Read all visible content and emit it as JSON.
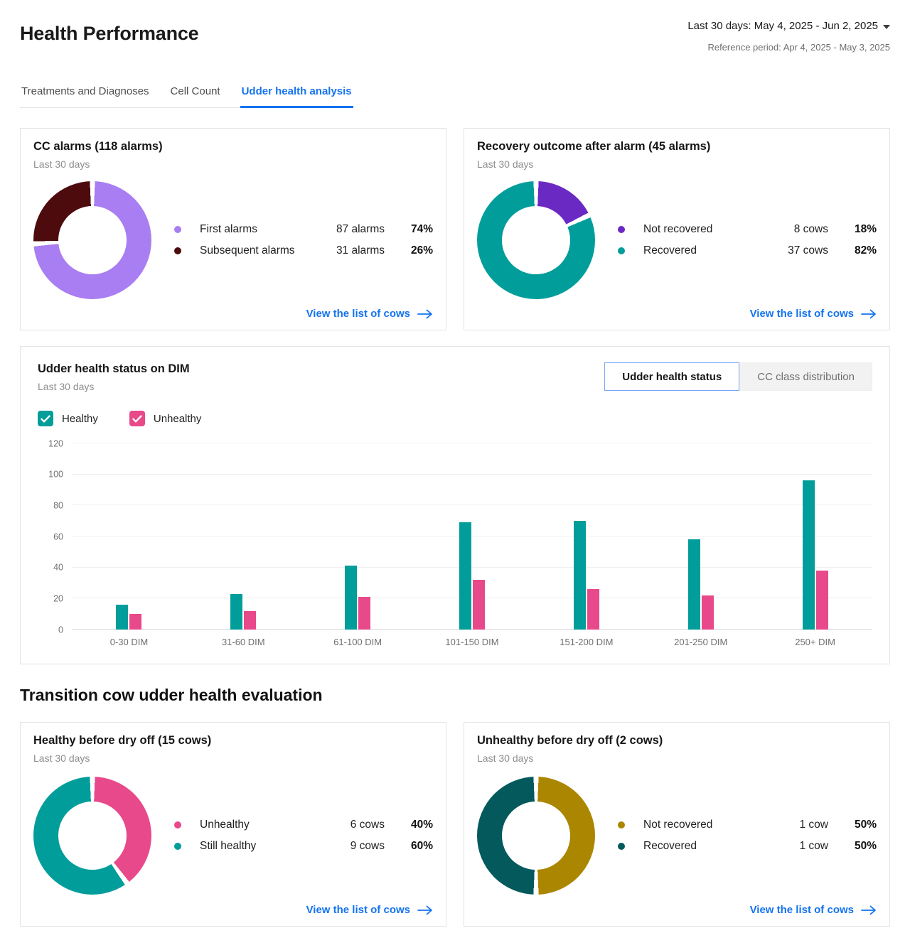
{
  "header": {
    "title": "Health Performance",
    "period": "Last 30 days: May 4, 2025 - Jun 2, 2025",
    "reference": "Reference period: Apr 4, 2025 - May 3, 2025"
  },
  "tabs": [
    {
      "label": "Treatments and Diagnoses",
      "active": false
    },
    {
      "label": "Cell Count",
      "active": false
    },
    {
      "label": "Udder health analysis",
      "active": true
    }
  ],
  "link_label": "View the list of cows",
  "section_title": "Transition cow udder health evaluation",
  "dim_card": {
    "title": "Udder health status on DIM",
    "subtitle": "Last 30 days",
    "toggle": [
      {
        "label": "Udder health status",
        "active": true
      },
      {
        "label": "CC class distribution",
        "active": false
      }
    ]
  },
  "colors": {
    "accent_blue": "#1473f0",
    "healthy_teal": "#009d9a",
    "unhealthy_pink": "#e8498a",
    "first_alarm_purple": "#a87ef2",
    "subsequent_alarm_maroon": "#4d0b0e",
    "not_recovered_purple": "#6b29c4",
    "not_recovered_gold": "#ab8600",
    "recovered_dark_teal": "#03595c"
  },
  "chart_data": [
    {
      "id": "cc-alarms",
      "type": "pie",
      "title": "CC alarms (118 alarms)",
      "subtitle": "Last 30 days",
      "segments": [
        {
          "label": "First alarms",
          "value": 87,
          "display": "87 alarms",
          "pct": 74,
          "pct_display": "74%",
          "color": "#a87ef2"
        },
        {
          "label": "Subsequent alarms",
          "value": 31,
          "display": "31 alarms",
          "pct": 26,
          "pct_display": "26%",
          "color": "#4d0b0e"
        }
      ]
    },
    {
      "id": "recovery-outcome",
      "type": "pie",
      "title": "Recovery outcome after alarm (45 alarms)",
      "subtitle": "Last 30 days",
      "segments": [
        {
          "label": "Not recovered",
          "value": 8,
          "display": "8 cows",
          "pct": 18,
          "pct_display": "18%",
          "color": "#6b29c4"
        },
        {
          "label": "Recovered",
          "value": 37,
          "display": "37 cows",
          "pct": 82,
          "pct_display": "82%",
          "color": "#009d9a"
        }
      ]
    },
    {
      "id": "udder-health-dim",
      "type": "bar",
      "title": "Udder health status on DIM",
      "subtitle": "Last 30 days",
      "categories": [
        "0-30 DIM",
        "31-60 DIM",
        "61-100 DIM",
        "101-150 DIM",
        "151-200 DIM",
        "201-250 DIM",
        "250+ DIM"
      ],
      "series": [
        {
          "name": "Healthy",
          "color": "#009d9a",
          "values": [
            16,
            23,
            41,
            69,
            70,
            58,
            96
          ]
        },
        {
          "name": "Unhealthy",
          "color": "#e8498a",
          "values": [
            10,
            12,
            21,
            32,
            26,
            22,
            38
          ]
        }
      ],
      "xlabel": "",
      "ylabel": "",
      "ylim": [
        0,
        120
      ],
      "ytick_step": 20,
      "grid": true,
      "legend_position": "top-left"
    },
    {
      "id": "healthy-before-dry-off",
      "type": "pie",
      "title": "Healthy before dry off (15 cows)",
      "subtitle": "Last 30 days",
      "segments": [
        {
          "label": "Unhealthy",
          "value": 6,
          "display": "6 cows",
          "pct": 40,
          "pct_display": "40%",
          "color": "#e8498a"
        },
        {
          "label": "Still healthy",
          "value": 9,
          "display": "9 cows",
          "pct": 60,
          "pct_display": "60%",
          "color": "#009d9a"
        }
      ]
    },
    {
      "id": "unhealthy-before-dry-off",
      "type": "pie",
      "title": "Unhealthy before dry off (2 cows)",
      "subtitle": "Last 30 days",
      "segments": [
        {
          "label": "Not recovered",
          "value": 1,
          "display": "1 cow",
          "pct": 50,
          "pct_display": "50%",
          "color": "#ab8600"
        },
        {
          "label": "Recovered",
          "value": 1,
          "display": "1 cow",
          "pct": 50,
          "pct_display": "50%",
          "color": "#03595c"
        }
      ]
    }
  ]
}
